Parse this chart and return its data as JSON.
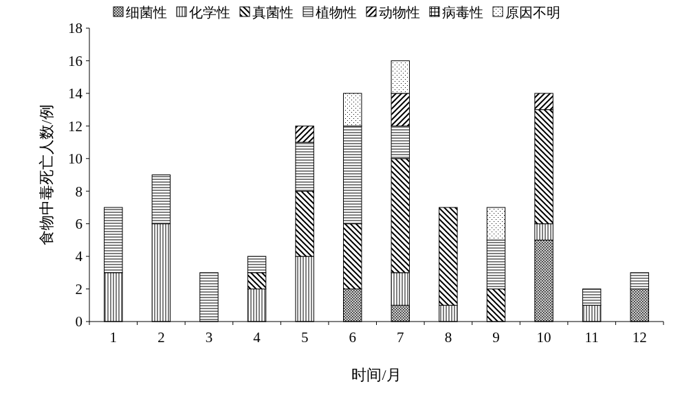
{
  "chart_data": {
    "type": "bar",
    "stacked": true,
    "xlabel": "时间/月",
    "ylabel": "食物中毒死亡人数/例",
    "categories": [
      "1",
      "2",
      "3",
      "4",
      "5",
      "6",
      "7",
      "8",
      "9",
      "10",
      "11",
      "12"
    ],
    "ylim": [
      0,
      18
    ],
    "yticks": [
      0,
      2,
      4,
      6,
      8,
      10,
      12,
      14,
      16,
      18
    ],
    "grid": false,
    "legend": "top",
    "series": [
      {
        "name": "细菌性",
        "color": "#000000",
        "values": [
          0,
          0,
          0,
          0,
          0,
          2,
          1,
          0,
          0,
          5,
          0,
          2
        ]
      },
      {
        "name": "化学性",
        "color": "#000000",
        "values": [
          3,
          6,
          0,
          2,
          4,
          0,
          2,
          1,
          0,
          1,
          1,
          0
        ]
      },
      {
        "name": "真菌性",
        "color": "#000000",
        "values": [
          0,
          0,
          0,
          1,
          4,
          4,
          7,
          6,
          2,
          7,
          0,
          0
        ]
      },
      {
        "name": "植物性",
        "color": "#000000",
        "values": [
          4,
          3,
          3,
          1,
          3,
          6,
          2,
          0,
          3,
          0,
          1,
          1
        ]
      },
      {
        "name": "动物性",
        "color": "#000000",
        "values": [
          0,
          0,
          0,
          0,
          1,
          0,
          2,
          0,
          0,
          1,
          0,
          0
        ]
      },
      {
        "name": "病毒性",
        "color": "#000000",
        "values": [
          0,
          0,
          0,
          0,
          0,
          0,
          0,
          0,
          0,
          0,
          0,
          0
        ]
      },
      {
        "name": "原因不明",
        "color": "#000000",
        "values": [
          0,
          0,
          0,
          0,
          0,
          2,
          2,
          0,
          2,
          0,
          0,
          0
        ]
      }
    ]
  }
}
